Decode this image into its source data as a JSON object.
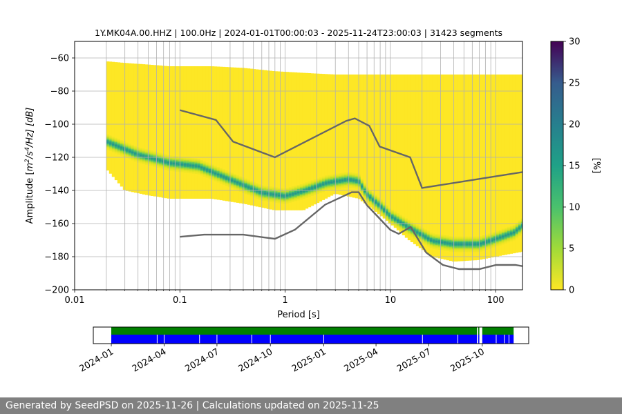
{
  "chart_data": [
    {
      "type": "heatmap",
      "title": "1Y.MK04A.00.HHZ | 100.0Hz | 2024-01-01T00:00:03 - 2025-11-24T23:00:03 | 31423 segments",
      "xlabel": "Period [s]",
      "ylabel_parts": [
        "Amplitude [",
        "m",
        "2",
        "/s",
        "4",
        "/Hz] [dB]"
      ],
      "xscale": "log",
      "xlim": [
        0.01,
        180
      ],
      "ylim": [
        -200,
        -50
      ],
      "xticks": [
        0.01,
        0.1,
        1,
        10,
        100
      ],
      "xtick_labels": [
        "0.01",
        "0.1",
        "1",
        "10",
        "100"
      ],
      "yticks": [
        -200,
        -180,
        -160,
        -140,
        -120,
        -100,
        -80,
        -60
      ],
      "ytick_labels": [
        "−200",
        "−180",
        "−160",
        "−140",
        "−120",
        "−100",
        "−80",
        "−60"
      ],
      "grid": true,
      "colorbar": {
        "label": "[%]",
        "range": [
          0,
          30
        ],
        "ticks": [
          0,
          5,
          10,
          15,
          20,
          25,
          30
        ],
        "tick_labels": [
          "0",
          "5",
          "10",
          "15",
          "20",
          "25",
          "30"
        ],
        "colormap": "viridis"
      },
      "density_envelope": {
        "period": [
          0.02,
          0.03,
          0.05,
          0.08,
          0.12,
          0.2,
          0.4,
          0.8,
          1.5,
          3,
          5,
          7,
          10,
          15,
          25,
          40,
          70,
          100,
          180
        ],
        "upper_db": [
          -62,
          -63,
          -64,
          -65,
          -65,
          -65,
          -66,
          -68,
          -69,
          -70,
          -70,
          -70,
          -70,
          -70,
          -70,
          -70,
          -70,
          -70,
          -70
        ],
        "lower_db": [
          -127,
          -140,
          -143,
          -145,
          -145,
          -145,
          -148,
          -152,
          -152,
          -142,
          -145,
          -152,
          -160,
          -170,
          -180,
          -183,
          -182,
          -180,
          -177
        ]
      },
      "mode_curve": {
        "period": [
          0.02,
          0.04,
          0.08,
          0.15,
          0.3,
          0.6,
          1,
          1.5,
          2.5,
          4,
          5,
          6,
          8,
          10,
          15,
          25,
          40,
          70,
          100,
          150,
          180
        ],
        "db": [
          -110,
          -118,
          -123,
          -125,
          -133,
          -141,
          -143,
          -140,
          -135,
          -133,
          -134,
          -142,
          -149,
          -155,
          -162,
          -170,
          -172,
          -172,
          -169,
          -165,
          -161
        ]
      },
      "nlnm": {
        "period": [
          0.1,
          0.17,
          0.4,
          0.8,
          1.24,
          2.4,
          4.3,
          5.0,
          6.0,
          10.0,
          12.0,
          15.6,
          21.9,
          31.6,
          45.0,
          70.0,
          101.0,
          154.0,
          180.0
        ],
        "db": [
          -168,
          -166.7,
          -166.7,
          -169.2,
          -163.7,
          -148.6,
          -141.1,
          -141.1,
          -149.0,
          -163.8,
          -166.2,
          -162.1,
          -177.5,
          -185.0,
          -187.5,
          -187.5,
          -185.0,
          -185.0,
          -185.7
        ]
      },
      "nhnm": {
        "period": [
          0.1,
          0.22,
          0.32,
          0.8,
          3.8,
          4.6,
          6.3,
          7.9,
          15.4,
          20.0,
          180.0
        ],
        "db": [
          -91.5,
          -97.4,
          -110.5,
          -120.0,
          -98.0,
          -96.5,
          -101.0,
          -113.5,
          -120.0,
          -138.5,
          -128.9
        ]
      },
      "curve_color": "#666666"
    },
    {
      "type": "timeline",
      "xlim": [
        "2023-12-01",
        "2025-12-20"
      ],
      "xtick_labels": [
        "2024-01",
        "2024-04",
        "2024-07",
        "2024-10",
        "2025-01",
        "2025-04",
        "2025-07",
        "2025-10"
      ],
      "xtick_dates": [
        "2024-01-01",
        "2024-04-01",
        "2024-07-01",
        "2024-10-01",
        "2025-01-01",
        "2025-04-01",
        "2025-07-01",
        "2025-10-01"
      ],
      "data_color": "#008000",
      "processed_color": "#0000ff",
      "data_intervals": [
        [
          "2024-01-01",
          "2025-09-22"
        ],
        [
          "2025-09-24",
          "2025-09-26"
        ],
        [
          "2025-10-01",
          "2025-11-24"
        ]
      ],
      "processed_intervals": [
        [
          "2024-01-01",
          "2025-09-22"
        ],
        [
          "2025-09-24",
          "2025-09-26"
        ],
        [
          "2025-10-01",
          "2025-11-24"
        ]
      ],
      "processed_gap_dates": [
        "2024-03-20",
        "2024-04-01",
        "2024-06-01",
        "2024-07-01",
        "2024-08-30",
        "2024-10-01",
        "2025-01-01",
        "2025-06-20",
        "2025-08-20",
        "2025-10-25",
        "2025-11-08",
        "2025-11-16"
      ]
    }
  ],
  "footer": {
    "text": "Generated by SeedPSD on 2025-11-26 | Calculations updated on 2025-11-25"
  }
}
